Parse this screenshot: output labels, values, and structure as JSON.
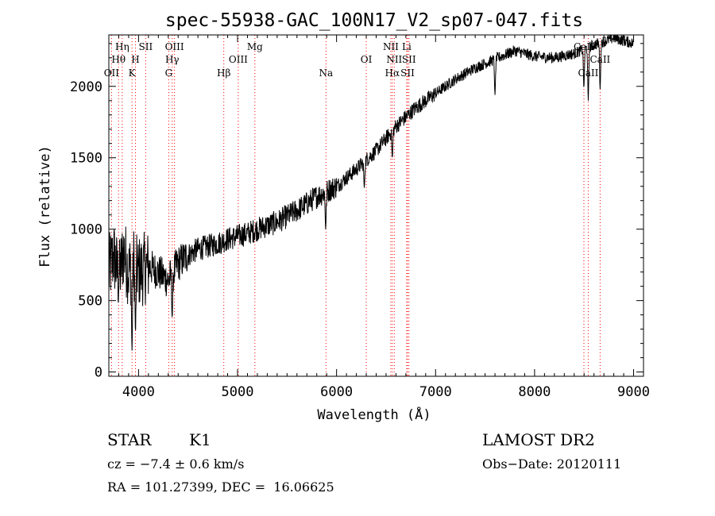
{
  "chart_data": {
    "type": "line",
    "title": "spec-55938-GAC_100N17_V2_sp07-047.fits",
    "xlabel": "Wavelength (Å)",
    "ylabel": "Flux (relative)",
    "xlim": [
      3700,
      9100
    ],
    "ylim": [
      -30,
      2360
    ],
    "xticks": [
      4000,
      5000,
      6000,
      7000,
      8000,
      9000
    ],
    "yticks": [
      0,
      500,
      1000,
      1500,
      2000
    ],
    "grid": false,
    "line_color": "#000000",
    "marker_line_color": "#ff0000",
    "spectrum_anchor_points": [
      [
        3700,
        700
      ],
      [
        3750,
        820
      ],
      [
        3800,
        650
      ],
      [
        3850,
        850
      ],
      [
        3900,
        700
      ],
      [
        3950,
        780
      ],
      [
        4000,
        700
      ],
      [
        4100,
        740
      ],
      [
        4200,
        700
      ],
      [
        4300,
        640
      ],
      [
        4400,
        760
      ],
      [
        4500,
        820
      ],
      [
        4600,
        860
      ],
      [
        4700,
        880
      ],
      [
        4800,
        900
      ],
      [
        4900,
        930
      ],
      [
        5000,
        950
      ],
      [
        5100,
        970
      ],
      [
        5200,
        1000
      ],
      [
        5400,
        1050
      ],
      [
        5600,
        1130
      ],
      [
        5800,
        1230
      ],
      [
        6000,
        1300
      ],
      [
        6200,
        1420
      ],
      [
        6400,
        1550
      ],
      [
        6600,
        1720
      ],
      [
        6800,
        1850
      ],
      [
        7000,
        1950
      ],
      [
        7200,
        2050
      ],
      [
        7400,
        2130
      ],
      [
        7600,
        2190
      ],
      [
        7800,
        2250
      ],
      [
        8000,
        2210
      ],
      [
        8200,
        2200
      ],
      [
        8400,
        2230
      ],
      [
        8600,
        2290
      ],
      [
        8800,
        2340
      ],
      [
        9000,
        2300
      ]
    ],
    "absorption_dips": [
      [
        3934,
        150
      ],
      [
        3969,
        280
      ],
      [
        4340,
        380
      ],
      [
        5890,
        1000
      ],
      [
        6280,
        1290
      ],
      [
        6563,
        1500
      ],
      [
        7600,
        1940
      ],
      [
        8498,
        1990
      ],
      [
        8542,
        1900
      ],
      [
        8662,
        1980
      ]
    ],
    "spectral_lines": [
      {
        "label": "OII",
        "x": 3727,
        "row": 2
      },
      {
        "label": "Hθ",
        "x": 3798,
        "row": 1
      },
      {
        "label": "Hη",
        "x": 3835,
        "row": 0
      },
      {
        "label": "K",
        "x": 3934,
        "row": 2
      },
      {
        "label": "H",
        "x": 3969,
        "row": 1
      },
      {
        "label": "SII",
        "x": 4072,
        "row": 0
      },
      {
        "label": "G",
        "x": 4305,
        "row": 2
      },
      {
        "label": "Hγ",
        "x": 4340,
        "row": 1
      },
      {
        "label": "OIII",
        "x": 4363,
        "row": 0
      },
      {
        "label": "Hβ",
        "x": 4861,
        "row": 2
      },
      {
        "label": "OIII",
        "x": 5007,
        "row": 1
      },
      {
        "label": "Mg",
        "x": 5175,
        "row": 0
      },
      {
        "label": "Na",
        "x": 5893,
        "row": 2
      },
      {
        "label": "OI",
        "x": 6300,
        "row": 1
      },
      {
        "label": "NII",
        "x": 6548,
        "row": 0
      },
      {
        "label": "Hα",
        "x": 6563,
        "row": 2
      },
      {
        "label": "NII",
        "x": 6583,
        "row": 1
      },
      {
        "label": "Li",
        "x": 6708,
        "row": 0
      },
      {
        "label": "SII",
        "x": 6717,
        "row": 2
      },
      {
        "label": "SII",
        "x": 6731,
        "row": 1
      },
      {
        "label": "CaII",
        "x": 8498,
        "row": 0
      },
      {
        "label": "CaII",
        "x": 8542,
        "row": 2
      },
      {
        "label": "CaII",
        "x": 8662,
        "row": 1
      }
    ]
  },
  "info": {
    "class_label": "STAR",
    "subclass_label": "K1",
    "survey": "LAMOST DR2",
    "cz": "cz = −7.4 ± 0.6 km/s",
    "obs_date": "Obs−Date: 20120111",
    "radec": "RA = 101.27399, DEC =  16.06625"
  }
}
